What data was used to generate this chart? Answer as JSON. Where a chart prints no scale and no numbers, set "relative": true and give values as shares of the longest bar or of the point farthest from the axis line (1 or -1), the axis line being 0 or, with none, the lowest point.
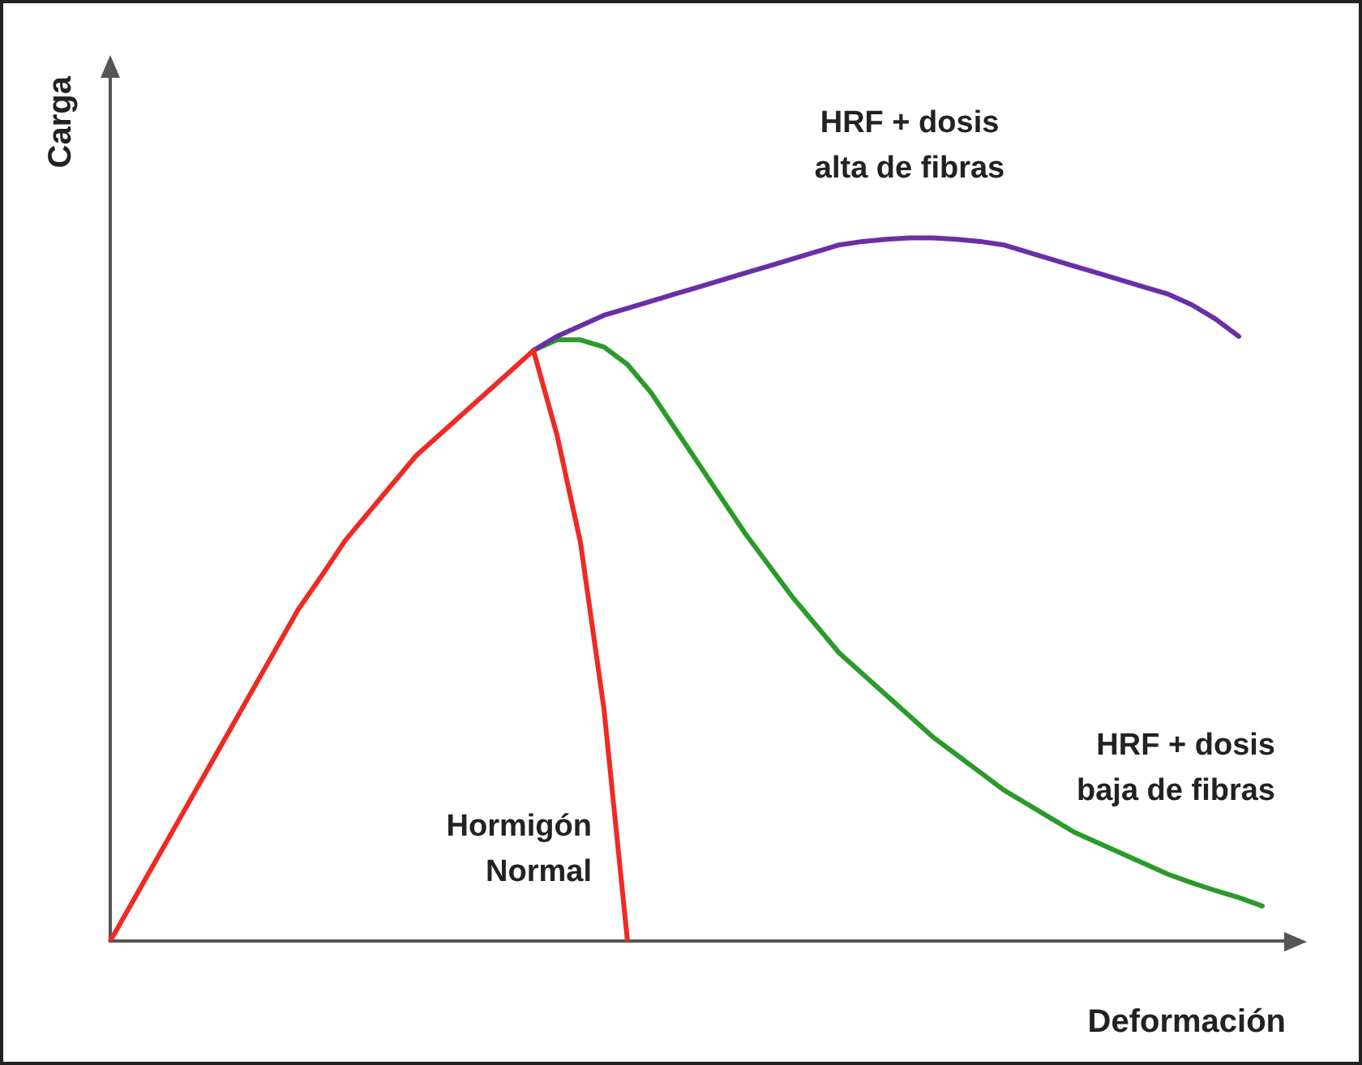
{
  "chart_data": {
    "type": "line",
    "relative": true,
    "xlabel": "Deformación",
    "ylabel": "Carga",
    "grid": false,
    "legend": false,
    "marker": "none",
    "line_style": "solid",
    "categories": [
      null,
      null,
      null,
      null,
      null,
      null,
      null,
      null,
      null,
      null,
      null,
      null,
      null,
      null,
      null,
      null,
      null,
      null,
      null,
      null,
      null,
      null,
      null,
      null,
      null,
      null,
      null,
      null,
      null,
      null,
      null,
      null,
      null,
      null,
      null,
      null,
      null,
      null,
      null,
      null,
      null,
      null,
      null,
      null,
      null,
      null,
      null,
      null,
      null,
      null,
      null
    ],
    "series": [
      {
        "name": "Hormigón Normal",
        "color": "#ee2a24",
        "values": [
          0,
          0.059,
          0.118,
          0.177,
          0.236,
          0.295,
          0.354,
          0.413,
          0.472,
          0.52,
          0.57,
          0.61,
          0.65,
          0.69,
          0.72,
          0.75,
          0.78,
          0.81,
          0.84,
          0.72,
          0.567,
          0.33,
          0,
          null,
          null,
          null,
          null,
          null,
          null,
          null,
          null,
          null,
          null,
          null,
          null,
          null,
          null,
          null,
          null,
          null,
          null,
          null,
          null,
          null,
          null,
          null,
          null,
          null,
          null,
          null,
          null
        ]
      },
      {
        "name": "HRF + dosis alta de fibras",
        "color": "#6a2fa8",
        "values": [
          null,
          null,
          null,
          null,
          null,
          null,
          null,
          null,
          null,
          null,
          null,
          null,
          null,
          null,
          null,
          null,
          null,
          null,
          0.84,
          0.86,
          0.875,
          0.89,
          0.9,
          0.91,
          0.92,
          0.93,
          0.94,
          0.95,
          0.96,
          0.97,
          0.98,
          0.99,
          0.995,
          0.998,
          1,
          1,
          0.998,
          0.995,
          0.99,
          0.98,
          0.97,
          0.96,
          0.95,
          0.94,
          0.93,
          0.92,
          0.905,
          0.885,
          0.86,
          null,
          null
        ]
      },
      {
        "name": "HRF + dosis baja de fibras",
        "color": "#2a9a2a",
        "values": [
          null,
          null,
          null,
          null,
          null,
          null,
          null,
          null,
          null,
          null,
          null,
          null,
          null,
          null,
          null,
          null,
          null,
          null,
          0.84,
          0.855,
          0.855,
          0.845,
          0.82,
          0.78,
          0.73,
          0.68,
          0.63,
          0.58,
          0.535,
          0.49,
          0.45,
          0.41,
          0.38,
          0.35,
          0.32,
          0.29,
          0.265,
          0.24,
          0.215,
          0.195,
          0.175,
          0.155,
          0.14,
          0.125,
          0.11,
          0.095,
          0.083,
          0.072,
          0.062,
          0.05,
          null
        ]
      }
    ]
  }
}
